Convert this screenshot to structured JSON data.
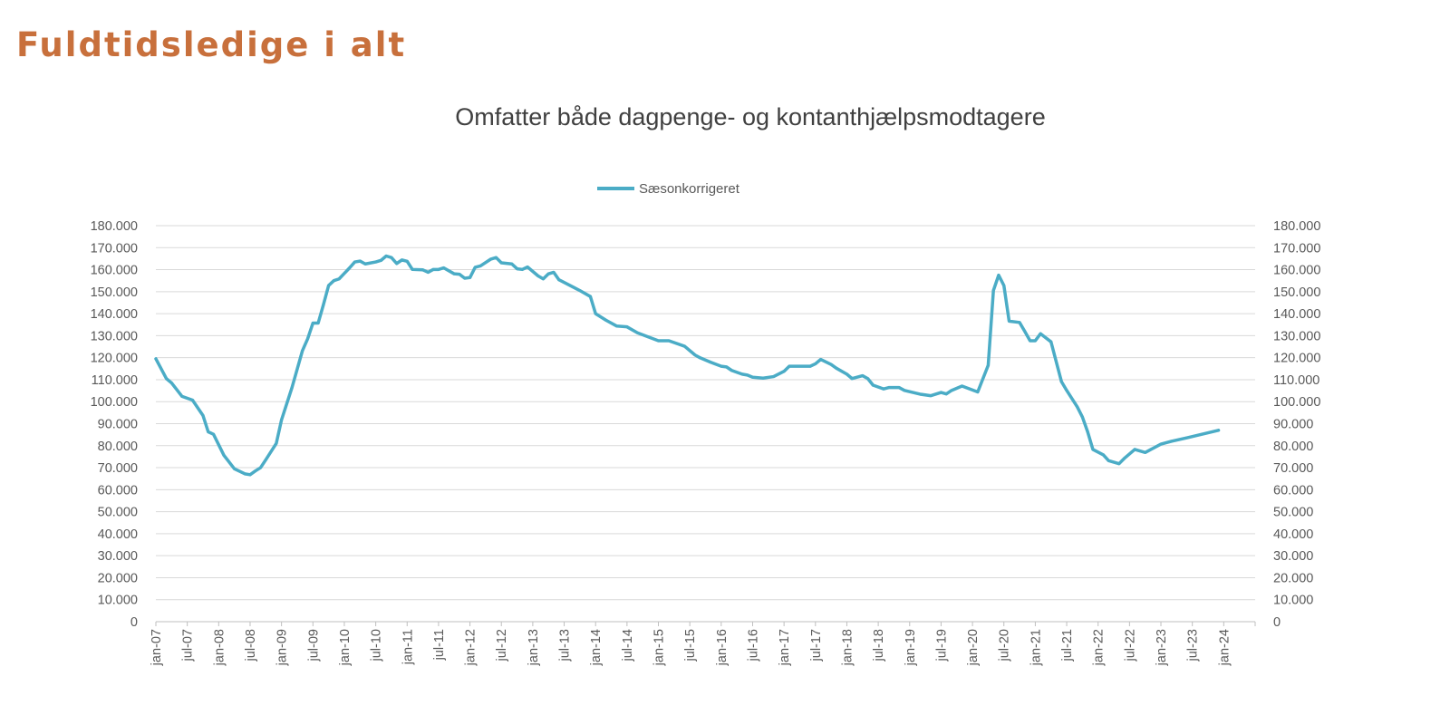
{
  "page": {
    "title": "Fuldtidsledige i alt"
  },
  "chart_data": {
    "type": "line",
    "title": "Omfatter både dagpenge- og kontanthjælpsmodtagere",
    "xlabel": "",
    "ylabel": "",
    "legend_position": "top",
    "grid": true,
    "secondary_y_axis": true,
    "ylim": [
      0,
      180000
    ],
    "y_ticks": [
      "0",
      "10.000",
      "20.000",
      "30.000",
      "40.000",
      "50.000",
      "60.000",
      "70.000",
      "80.000",
      "90.000",
      "100.000",
      "110.000",
      "120.000",
      "130.000",
      "140.000",
      "150.000",
      "160.000",
      "170.000",
      "180.000"
    ],
    "x_range": [
      "2007-01",
      "2024-07"
    ],
    "x_ticks": [
      "jan-07",
      "jul-07",
      "jan-08",
      "jul-08",
      "jan-09",
      "jul-09",
      "jan-10",
      "jul-10",
      "jan-11",
      "jul-11",
      "jan-12",
      "jul-12",
      "jan-13",
      "jul-13",
      "jan-14",
      "jul-14",
      "jan-15",
      "jul-15",
      "jan-16",
      "jul-16",
      "jan-17",
      "jul-17",
      "jan-18",
      "jul-18",
      "jan-19",
      "jul-19",
      "jan-20",
      "jul-20",
      "jan-21",
      "jul-21",
      "jan-22",
      "jul-22",
      "jan-23",
      "jul-23",
      "jan-24"
    ],
    "series": [
      {
        "name": "Sæsonkorrigeret",
        "color": "#4bacc6",
        "points": [
          [
            "2007-01",
            119500
          ],
          [
            "2007-03",
            110500
          ],
          [
            "2007-04",
            108500
          ],
          [
            "2007-06",
            102400
          ],
          [
            "2007-08",
            100700
          ],
          [
            "2007-10",
            93700
          ],
          [
            "2007-11",
            86300
          ],
          [
            "2007-12",
            85200
          ],
          [
            "2008-02",
            75600
          ],
          [
            "2008-04",
            69500
          ],
          [
            "2008-06",
            67200
          ],
          [
            "2008-07",
            66800
          ],
          [
            "2008-08",
            68500
          ],
          [
            "2008-09",
            70000
          ],
          [
            "2008-10",
            73600
          ],
          [
            "2008-12",
            81000
          ],
          [
            "2009-01",
            91700
          ],
          [
            "2009-03",
            106400
          ],
          [
            "2009-05",
            123200
          ],
          [
            "2009-06",
            128600
          ],
          [
            "2009-07",
            135700
          ],
          [
            "2009-08",
            135700
          ],
          [
            "2009-09",
            144000
          ],
          [
            "2009-10",
            152800
          ],
          [
            "2009-11",
            155000
          ],
          [
            "2009-12",
            155800
          ],
          [
            "2010-02",
            160800
          ],
          [
            "2010-03",
            163500
          ],
          [
            "2010-04",
            163900
          ],
          [
            "2010-05",
            162600
          ],
          [
            "2010-07",
            163500
          ],
          [
            "2010-08",
            164200
          ],
          [
            "2010-09",
            166200
          ],
          [
            "2010-10",
            165500
          ],
          [
            "2010-11",
            162800
          ],
          [
            "2010-12",
            164400
          ],
          [
            "2011-01",
            163800
          ],
          [
            "2011-02",
            160100
          ],
          [
            "2011-04",
            159900
          ],
          [
            "2011-05",
            158800
          ],
          [
            "2011-06",
            160100
          ],
          [
            "2011-07",
            160100
          ],
          [
            "2011-08",
            160800
          ],
          [
            "2011-10",
            158100
          ],
          [
            "2011-11",
            157900
          ],
          [
            "2011-12",
            156100
          ],
          [
            "2012-01",
            156400
          ],
          [
            "2012-02",
            161100
          ],
          [
            "2012-03",
            161700
          ],
          [
            "2012-05",
            164800
          ],
          [
            "2012-06",
            165500
          ],
          [
            "2012-07",
            163100
          ],
          [
            "2012-09",
            162600
          ],
          [
            "2012-10",
            160400
          ],
          [
            "2012-11",
            160100
          ],
          [
            "2012-12",
            161200
          ],
          [
            "2013-02",
            157200
          ],
          [
            "2013-03",
            155800
          ],
          [
            "2013-04",
            158100
          ],
          [
            "2013-05",
            158800
          ],
          [
            "2013-06",
            155400
          ],
          [
            "2013-10",
            150500
          ],
          [
            "2013-12",
            147800
          ],
          [
            "2014-01",
            140000
          ],
          [
            "2014-03",
            137000
          ],
          [
            "2014-05",
            134400
          ],
          [
            "2014-07",
            134000
          ],
          [
            "2014-09",
            131300
          ],
          [
            "2014-11",
            129500
          ],
          [
            "2015-01",
            127700
          ],
          [
            "2015-03",
            127700
          ],
          [
            "2015-06",
            125200
          ],
          [
            "2015-08",
            121200
          ],
          [
            "2015-09",
            119900
          ],
          [
            "2015-11",
            117900
          ],
          [
            "2016-01",
            116100
          ],
          [
            "2016-02",
            115800
          ],
          [
            "2016-03",
            114200
          ],
          [
            "2016-05",
            112500
          ],
          [
            "2016-06",
            112100
          ],
          [
            "2016-07",
            111100
          ],
          [
            "2016-09",
            110700
          ],
          [
            "2016-11",
            111400
          ],
          [
            "2017-01",
            113800
          ],
          [
            "2017-02",
            116100
          ],
          [
            "2017-06",
            116100
          ],
          [
            "2017-07",
            117200
          ],
          [
            "2017-08",
            119200
          ],
          [
            "2017-10",
            116900
          ],
          [
            "2017-11",
            115200
          ],
          [
            "2018-01",
            112500
          ],
          [
            "2018-02",
            110500
          ],
          [
            "2018-04",
            111800
          ],
          [
            "2018-05",
            110500
          ],
          [
            "2018-06",
            107500
          ],
          [
            "2018-08",
            105800
          ],
          [
            "2018-09",
            106400
          ],
          [
            "2018-11",
            106400
          ],
          [
            "2018-12",
            105100
          ],
          [
            "2019-03",
            103400
          ],
          [
            "2019-05",
            102700
          ],
          [
            "2019-07",
            104200
          ],
          [
            "2019-08",
            103500
          ],
          [
            "2019-09",
            105100
          ],
          [
            "2019-11",
            107100
          ],
          [
            "2020-02",
            104400
          ],
          [
            "2020-04",
            116500
          ],
          [
            "2020-05",
            150500
          ],
          [
            "2020-06",
            157500
          ],
          [
            "2020-07",
            152800
          ],
          [
            "2020-08",
            136600
          ],
          [
            "2020-10",
            136000
          ],
          [
            "2020-11",
            131900
          ],
          [
            "2020-12",
            127700
          ],
          [
            "2021-01",
            127700
          ],
          [
            "2021-02",
            130900
          ],
          [
            "2021-04",
            127200
          ],
          [
            "2021-06",
            109100
          ],
          [
            "2021-07",
            105100
          ],
          [
            "2021-09",
            97700
          ],
          [
            "2021-10",
            93000
          ],
          [
            "2021-11",
            86300
          ],
          [
            "2021-12",
            78300
          ],
          [
            "2022-02",
            75800
          ],
          [
            "2022-03",
            73200
          ],
          [
            "2022-05",
            71800
          ],
          [
            "2022-06",
            74200
          ],
          [
            "2022-08",
            78300
          ],
          [
            "2022-10",
            76900
          ],
          [
            "2023-01",
            80700
          ],
          [
            "2023-03",
            82000
          ],
          [
            "2023-06",
            83600
          ],
          [
            "2023-12",
            87000
          ]
        ]
      }
    ]
  }
}
